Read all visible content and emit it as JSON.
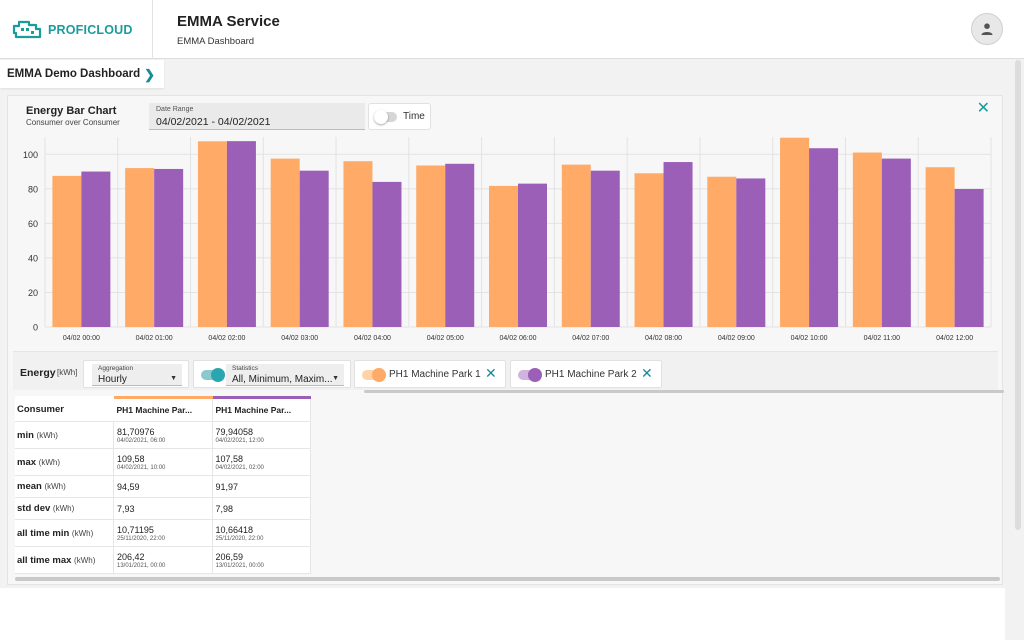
{
  "header": {
    "brand_name": "PROFICLOUD",
    "app_title": "EMMA Service",
    "app_subtitle": "EMMA Dashboard"
  },
  "dashboard_tab": {
    "label": "EMMA Demo Dashboard"
  },
  "card": {
    "title": "Energy Bar Chart",
    "subtitle": "Consumer over Consumer",
    "date_range_label": "Date Range",
    "date_range_value": "04/02/2021 - 04/02/2021",
    "time_toggle_label": "Time"
  },
  "colors": {
    "accent": "#1a9c9c",
    "series1": "#ffaa66",
    "series2": "#9b5fb8"
  },
  "chart_data": {
    "type": "bar",
    "categories": [
      "04/02 00:00",
      "04/02 01:00",
      "04/02 02:00",
      "04/02 03:00",
      "04/02 04:00",
      "04/02 05:00",
      "04/02 06:00",
      "04/02 07:00",
      "04/02 08:00",
      "04/02 09:00",
      "04/02 10:00",
      "04/02 11:00",
      "04/02 12:00"
    ],
    "series": [
      {
        "name": "PH1 Machine Park 1",
        "color": "#ffaa66",
        "values": [
          87.5,
          92,
          107.5,
          97.5,
          96,
          93.5,
          81.7,
          94,
          89,
          87,
          109.6,
          101,
          92.5
        ]
      },
      {
        "name": "PH1 Machine Park 2",
        "color": "#9b5fb8",
        "values": [
          90,
          91.5,
          107.6,
          90.5,
          84,
          94.5,
          83,
          90.5,
          95.5,
          86,
          103.5,
          97.5,
          79.9
        ]
      }
    ],
    "ylim": [
      0,
      110
    ],
    "yticks": [
      0,
      20,
      40,
      60,
      80,
      100
    ],
    "grid": true,
    "legend": "none"
  },
  "controls": {
    "energy_label": "Energy",
    "energy_unit": "[kWh]",
    "aggregation_label": "Aggregation",
    "aggregation_value": "Hourly",
    "statistics_label": "Statistics",
    "statistics_value": "All, Minimum, Maxim...",
    "series1_chip": "PH1 Machine Park 1",
    "series2_chip": "PH1 Machine Park 2"
  },
  "stats_table": {
    "header_consumer": "Consumer",
    "col1": "PH1 Machine Par...",
    "col2": "PH1 Machine Par...",
    "rows": [
      {
        "label": "min",
        "unit": "(kWh)",
        "v1": "81,70976",
        "v1_sub": "04/02/2021, 06:00",
        "v2": "79,94058",
        "v2_sub": "04/02/2021, 12:00"
      },
      {
        "label": "max",
        "unit": "(kWh)",
        "v1": "109,58",
        "v1_sub": "04/02/2021, 10:00",
        "v2": "107,58",
        "v2_sub": "04/02/2021, 02:00"
      },
      {
        "label": "mean",
        "unit": "(kWh)",
        "v1": "94,59",
        "v1_sub": "",
        "v2": "91,97",
        "v2_sub": ""
      },
      {
        "label": "std dev",
        "unit": "(kWh)",
        "v1": "7,93",
        "v1_sub": "",
        "v2": "7,98",
        "v2_sub": ""
      },
      {
        "label": "all time min",
        "unit": "(kWh)",
        "v1": "10,71195",
        "v1_sub": "25/11/2020, 22:00",
        "v2": "10,66418",
        "v2_sub": "25/11/2020, 22:00"
      },
      {
        "label": "all time max",
        "unit": "(kWh)",
        "v1": "206,42",
        "v1_sub": "13/01/2021, 00:00",
        "v2": "206,59",
        "v2_sub": "13/01/2021, 00:00"
      }
    ]
  }
}
